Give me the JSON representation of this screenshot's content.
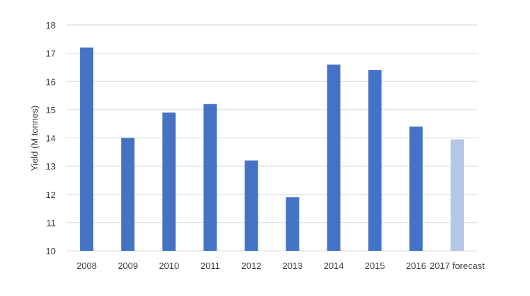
{
  "chart_data": {
    "type": "bar",
    "title": "",
    "xlabel": "",
    "ylabel": "Yield (M tonnes)",
    "categories": [
      "2008",
      "2009",
      "2010",
      "2011",
      "2012",
      "2013",
      "2014",
      "2015",
      "2016",
      "2017 forecast"
    ],
    "values": [
      17.2,
      14.0,
      14.9,
      15.2,
      13.2,
      11.9,
      16.6,
      16.4,
      14.4,
      13.95
    ],
    "ylim": [
      10,
      18
    ],
    "yticks": [
      10,
      11,
      12,
      13,
      14,
      15,
      16,
      17,
      18
    ],
    "grid": true,
    "legend": "none",
    "colors": {
      "bar": "#4472c4",
      "forecast_bar": "#b4c7e7",
      "gridline": "#d9d9d9",
      "text": "#404040"
    },
    "forecast_index": 9
  }
}
